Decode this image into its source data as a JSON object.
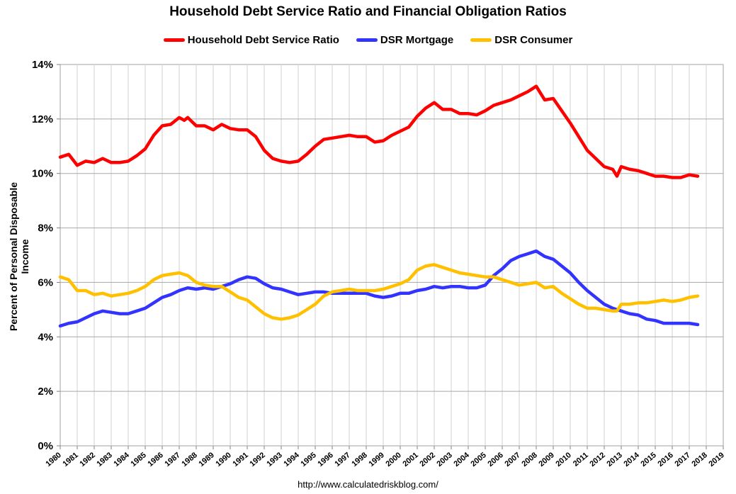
{
  "chart_data": {
    "type": "line",
    "title": "Household Debt Service Ratio and Financial Obligation Ratios",
    "xlabel": "",
    "ylabel": "Percent of Personal Disposable Income",
    "xlim": [
      1980,
      2019
    ],
    "ylim": [
      0,
      14
    ],
    "x_ticks": [
      "1980",
      "1981",
      "1982",
      "1983",
      "1984",
      "1985",
      "1986",
      "1987",
      "1988",
      "1989",
      "1990",
      "1991",
      "1992",
      "1993",
      "1994",
      "1995",
      "1996",
      "1997",
      "1998",
      "1999",
      "2000",
      "2001",
      "2002",
      "2003",
      "2004",
      "2005",
      "2006",
      "2007",
      "2008",
      "2009",
      "2010",
      "2011",
      "2012",
      "2013",
      "2014",
      "2015",
      "2016",
      "2017",
      "2018",
      "2019"
    ],
    "y_ticks": [
      "0%",
      "2%",
      "4%",
      "6%",
      "8%",
      "10%",
      "12%",
      "14%"
    ],
    "grid": true,
    "legend_position": "top",
    "series": [
      {
        "name": "Household Debt Service Ratio",
        "color": "#ff0000",
        "points": [
          [
            1980,
            10.6
          ],
          [
            1980.5,
            10.7
          ],
          [
            1981,
            10.3
          ],
          [
            1981.5,
            10.45
          ],
          [
            1982,
            10.4
          ],
          [
            1982.5,
            10.55
          ],
          [
            1983,
            10.4
          ],
          [
            1983.5,
            10.4
          ],
          [
            1984,
            10.45
          ],
          [
            1984.5,
            10.65
          ],
          [
            1985,
            10.9
          ],
          [
            1985.5,
            11.4
          ],
          [
            1986,
            11.75
          ],
          [
            1986.5,
            11.8
          ],
          [
            1987,
            12.05
          ],
          [
            1987.3,
            11.95
          ],
          [
            1987.5,
            12.05
          ],
          [
            1988,
            11.75
          ],
          [
            1988.5,
            11.75
          ],
          [
            1989,
            11.6
          ],
          [
            1989.5,
            11.8
          ],
          [
            1990,
            11.65
          ],
          [
            1990.5,
            11.6
          ],
          [
            1991,
            11.6
          ],
          [
            1991.5,
            11.35
          ],
          [
            1992,
            10.85
          ],
          [
            1992.5,
            10.55
          ],
          [
            1993,
            10.45
          ],
          [
            1993.5,
            10.4
          ],
          [
            1994,
            10.45
          ],
          [
            1994.5,
            10.7
          ],
          [
            1995,
            11.0
          ],
          [
            1995.5,
            11.25
          ],
          [
            1996,
            11.3
          ],
          [
            1996.5,
            11.35
          ],
          [
            1997,
            11.4
          ],
          [
            1997.5,
            11.35
          ],
          [
            1998,
            11.35
          ],
          [
            1998.5,
            11.15
          ],
          [
            1999,
            11.2
          ],
          [
            1999.5,
            11.4
          ],
          [
            2000,
            11.55
          ],
          [
            2000.5,
            11.7
          ],
          [
            2001,
            12.1
          ],
          [
            2001.5,
            12.4
          ],
          [
            2002,
            12.6
          ],
          [
            2002.5,
            12.35
          ],
          [
            2003,
            12.35
          ],
          [
            2003.5,
            12.2
          ],
          [
            2004,
            12.2
          ],
          [
            2004.5,
            12.15
          ],
          [
            2005,
            12.3
          ],
          [
            2005.5,
            12.5
          ],
          [
            2006,
            12.6
          ],
          [
            2006.5,
            12.7
          ],
          [
            2007,
            12.85
          ],
          [
            2007.5,
            13.0
          ],
          [
            2008,
            13.2
          ],
          [
            2008.25,
            12.95
          ],
          [
            2008.5,
            12.7
          ],
          [
            2009,
            12.75
          ],
          [
            2009.5,
            12.3
          ],
          [
            2010,
            11.85
          ],
          [
            2010.5,
            11.35
          ],
          [
            2011,
            10.85
          ],
          [
            2011.5,
            10.55
          ],
          [
            2012,
            10.25
          ],
          [
            2012.5,
            10.15
          ],
          [
            2012.75,
            9.9
          ],
          [
            2013,
            10.25
          ],
          [
            2013.5,
            10.15
          ],
          [
            2014,
            10.1
          ],
          [
            2014.5,
            10.0
          ],
          [
            2015,
            9.9
          ],
          [
            2015.5,
            9.9
          ],
          [
            2016,
            9.85
          ],
          [
            2016.5,
            9.85
          ],
          [
            2017,
            9.95
          ],
          [
            2017.5,
            9.9
          ]
        ]
      },
      {
        "name": "DSR Mortgage",
        "color": "#3333ff",
        "points": [
          [
            1980,
            4.4
          ],
          [
            1980.5,
            4.5
          ],
          [
            1981,
            4.55
          ],
          [
            1981.5,
            4.7
          ],
          [
            1982,
            4.85
          ],
          [
            1982.5,
            4.95
          ],
          [
            1983,
            4.9
          ],
          [
            1983.5,
            4.85
          ],
          [
            1984,
            4.85
          ],
          [
            1984.5,
            4.95
          ],
          [
            1985,
            5.05
          ],
          [
            1985.5,
            5.25
          ],
          [
            1986,
            5.45
          ],
          [
            1986.5,
            5.55
          ],
          [
            1987,
            5.7
          ],
          [
            1987.5,
            5.8
          ],
          [
            1988,
            5.75
          ],
          [
            1988.5,
            5.8
          ],
          [
            1989,
            5.75
          ],
          [
            1989.5,
            5.85
          ],
          [
            1990,
            5.95
          ],
          [
            1990.5,
            6.1
          ],
          [
            1991,
            6.2
          ],
          [
            1991.5,
            6.15
          ],
          [
            1992,
            5.95
          ],
          [
            1992.5,
            5.8
          ],
          [
            1993,
            5.75
          ],
          [
            1993.5,
            5.65
          ],
          [
            1994,
            5.55
          ],
          [
            1994.5,
            5.6
          ],
          [
            1995,
            5.65
          ],
          [
            1995.5,
            5.65
          ],
          [
            1996,
            5.6
          ],
          [
            1996.5,
            5.6
          ],
          [
            1997,
            5.6
          ],
          [
            1997.5,
            5.6
          ],
          [
            1998,
            5.6
          ],
          [
            1998.5,
            5.5
          ],
          [
            1999,
            5.45
          ],
          [
            1999.5,
            5.5
          ],
          [
            2000,
            5.6
          ],
          [
            2000.5,
            5.6
          ],
          [
            2001,
            5.7
          ],
          [
            2001.5,
            5.75
          ],
          [
            2002,
            5.85
          ],
          [
            2002.5,
            5.8
          ],
          [
            2003,
            5.85
          ],
          [
            2003.5,
            5.85
          ],
          [
            2004,
            5.8
          ],
          [
            2004.5,
            5.8
          ],
          [
            2005,
            5.9
          ],
          [
            2005.5,
            6.25
          ],
          [
            2006,
            6.5
          ],
          [
            2006.5,
            6.8
          ],
          [
            2007,
            6.95
          ],
          [
            2007.5,
            7.05
          ],
          [
            2008,
            7.15
          ],
          [
            2008.5,
            6.95
          ],
          [
            2009,
            6.85
          ],
          [
            2009.5,
            6.6
          ],
          [
            2010,
            6.35
          ],
          [
            2010.5,
            6.0
          ],
          [
            2011,
            5.7
          ],
          [
            2011.5,
            5.45
          ],
          [
            2012,
            5.2
          ],
          [
            2012.5,
            5.05
          ],
          [
            2013,
            4.95
          ],
          [
            2013.5,
            4.85
          ],
          [
            2014,
            4.8
          ],
          [
            2014.5,
            4.65
          ],
          [
            2015,
            4.6
          ],
          [
            2015.5,
            4.5
          ],
          [
            2016,
            4.5
          ],
          [
            2016.5,
            4.5
          ],
          [
            2017,
            4.5
          ],
          [
            2017.5,
            4.45
          ]
        ]
      },
      {
        "name": "DSR Consumer",
        "color": "#ffc000",
        "points": [
          [
            1980,
            6.2
          ],
          [
            1980.5,
            6.1
          ],
          [
            1981,
            5.7
          ],
          [
            1981.5,
            5.7
          ],
          [
            1982,
            5.55
          ],
          [
            1982.5,
            5.6
          ],
          [
            1983,
            5.5
          ],
          [
            1983.5,
            5.55
          ],
          [
            1984,
            5.6
          ],
          [
            1984.5,
            5.7
          ],
          [
            1985,
            5.85
          ],
          [
            1985.5,
            6.1
          ],
          [
            1986,
            6.25
          ],
          [
            1986.5,
            6.3
          ],
          [
            1987,
            6.35
          ],
          [
            1987.5,
            6.25
          ],
          [
            1988,
            6.0
          ],
          [
            1988.5,
            5.9
          ],
          [
            1989,
            5.85
          ],
          [
            1989.5,
            5.85
          ],
          [
            1990,
            5.65
          ],
          [
            1990.5,
            5.45
          ],
          [
            1991,
            5.35
          ],
          [
            1991.5,
            5.1
          ],
          [
            1992,
            4.85
          ],
          [
            1992.5,
            4.7
          ],
          [
            1993,
            4.65
          ],
          [
            1993.5,
            4.7
          ],
          [
            1994,
            4.8
          ],
          [
            1994.5,
            5.0
          ],
          [
            1995,
            5.2
          ],
          [
            1995.5,
            5.5
          ],
          [
            1996,
            5.65
          ],
          [
            1996.5,
            5.7
          ],
          [
            1997,
            5.75
          ],
          [
            1997.5,
            5.7
          ],
          [
            1998,
            5.7
          ],
          [
            1998.5,
            5.7
          ],
          [
            1999,
            5.75
          ],
          [
            1999.5,
            5.85
          ],
          [
            2000,
            5.95
          ],
          [
            2000.5,
            6.1
          ],
          [
            2001,
            6.45
          ],
          [
            2001.5,
            6.6
          ],
          [
            2002,
            6.65
          ],
          [
            2002.5,
            6.55
          ],
          [
            2003,
            6.45
          ],
          [
            2003.5,
            6.35
          ],
          [
            2004,
            6.3
          ],
          [
            2004.5,
            6.25
          ],
          [
            2005,
            6.2
          ],
          [
            2005.5,
            6.2
          ],
          [
            2006,
            6.1
          ],
          [
            2006.5,
            6.0
          ],
          [
            2007,
            5.9
          ],
          [
            2007.5,
            5.95
          ],
          [
            2008,
            6.0
          ],
          [
            2008.5,
            5.8
          ],
          [
            2009,
            5.85
          ],
          [
            2009.5,
            5.6
          ],
          [
            2010,
            5.4
          ],
          [
            2010.5,
            5.2
          ],
          [
            2011,
            5.05
          ],
          [
            2011.5,
            5.05
          ],
          [
            2012,
            5.0
          ],
          [
            2012.5,
            4.95
          ],
          [
            2012.75,
            4.95
          ],
          [
            2013,
            5.2
          ],
          [
            2013.5,
            5.2
          ],
          [
            2014,
            5.25
          ],
          [
            2014.5,
            5.25
          ],
          [
            2015,
            5.3
          ],
          [
            2015.5,
            5.35
          ],
          [
            2016,
            5.3
          ],
          [
            2016.5,
            5.35
          ],
          [
            2017,
            5.45
          ],
          [
            2017.5,
            5.5
          ]
        ]
      }
    ]
  },
  "source": "http://www.calculatedriskblog.com/"
}
